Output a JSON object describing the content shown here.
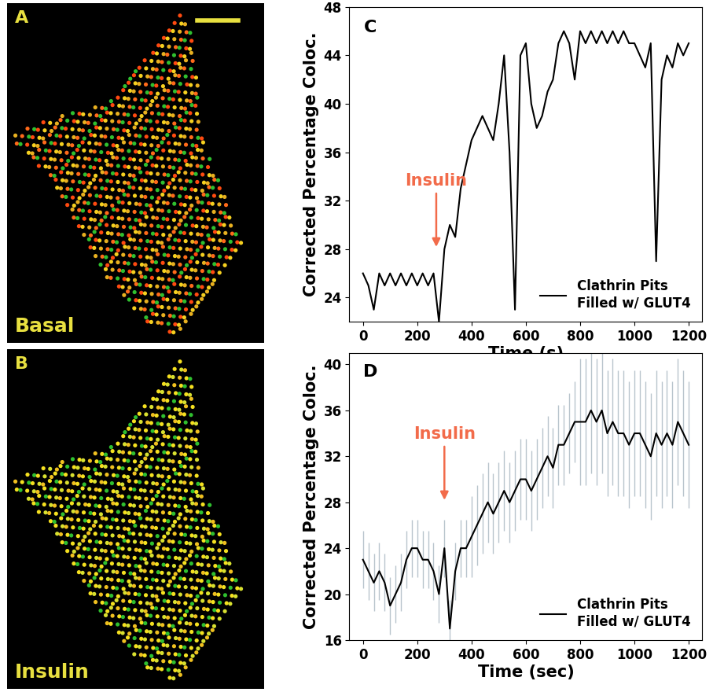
{
  "images": [
    {
      "label": "A",
      "caption": "Basal"
    },
    {
      "label": "B",
      "caption": "Insulin"
    }
  ],
  "chart_data": [
    {
      "type": "line",
      "label": "C",
      "x_label": "Time (s)",
      "y_label": "Corrected Percentage Coloc.",
      "xlim": [
        -50,
        1250
      ],
      "xticks": [
        0,
        200,
        400,
        600,
        800,
        1000,
        1200
      ],
      "ylim": [
        22,
        48
      ],
      "yticks": [
        24,
        28,
        32,
        36,
        40,
        44,
        48
      ],
      "legend": "lower right",
      "annotations": [
        {
          "text": "Insulin",
          "x": 270,
          "y": 28
        }
      ],
      "x": [
        0,
        20,
        40,
        60,
        80,
        100,
        120,
        140,
        160,
        180,
        200,
        220,
        240,
        260,
        280,
        300,
        320,
        340,
        360,
        380,
        400,
        420,
        440,
        460,
        480,
        500,
        520,
        540,
        560,
        580,
        600,
        620,
        640,
        660,
        680,
        700,
        720,
        740,
        760,
        780,
        800,
        820,
        840,
        860,
        880,
        900,
        920,
        940,
        960,
        980,
        1000,
        1020,
        1040,
        1060,
        1080,
        1100,
        1120,
        1140,
        1160,
        1180,
        1200
      ],
      "series": [
        {
          "name": "Clathrin Pits\nFilled w/ GLUT4",
          "color": "#000000",
          "values": [
            26,
            25,
            23,
            26,
            25,
            26,
            25,
            26,
            25,
            26,
            25,
            26,
            25,
            26,
            22,
            28,
            30,
            29,
            33,
            35,
            37,
            38,
            39,
            38,
            37,
            40,
            44,
            36,
            23,
            44,
            45,
            40,
            38,
            39,
            41,
            42,
            45,
            46,
            45,
            42,
            46,
            45,
            46,
            45,
            46,
            45,
            46,
            45,
            46,
            45,
            45,
            44,
            43,
            45,
            27,
            42,
            44,
            43,
            45,
            44,
            45
          ]
        }
      ]
    },
    {
      "type": "line",
      "label": "D",
      "x_label": "Time (sec)",
      "y_label": "Corrected Percentage Coloc.",
      "xlim": [
        -50,
        1250
      ],
      "xticks": [
        0,
        200,
        400,
        600,
        800,
        1000,
        1200
      ],
      "ylim": [
        16,
        41
      ],
      "yticks": [
        16,
        20,
        24,
        28,
        32,
        36,
        40
      ],
      "legend": "lower right",
      "annotations": [
        {
          "text": "Insulin",
          "x": 300,
          "y": 28
        }
      ],
      "x": [
        0,
        20,
        40,
        60,
        80,
        100,
        120,
        140,
        160,
        180,
        200,
        220,
        240,
        260,
        280,
        300,
        320,
        340,
        360,
        380,
        400,
        420,
        440,
        460,
        480,
        500,
        520,
        540,
        560,
        580,
        600,
        620,
        640,
        660,
        680,
        700,
        720,
        740,
        760,
        780,
        800,
        820,
        840,
        860,
        880,
        900,
        920,
        940,
        960,
        980,
        1000,
        1020,
        1040,
        1060,
        1080,
        1100,
        1120,
        1140,
        1160,
        1180,
        1200
      ],
      "series": [
        {
          "name": "Clathrin Pits\nFilled w/ GLUT4",
          "color": "#000000",
          "values": [
            23,
            22,
            21,
            22,
            21,
            19,
            20,
            21,
            23,
            24,
            24,
            23,
            23,
            22,
            20,
            24,
            17,
            22,
            24,
            24,
            25,
            26,
            27,
            28,
            27,
            28,
            29,
            28,
            29,
            30,
            30,
            29,
            30,
            31,
            32,
            31,
            33,
            33,
            34,
            35,
            35,
            35,
            36,
            35,
            36,
            34,
            35,
            34,
            34,
            33,
            34,
            34,
            33,
            32,
            34,
            33,
            34,
            33,
            35,
            34,
            33
          ],
          "errors": [
            2.5,
            2.5,
            2.5,
            2.5,
            2.5,
            2.5,
            2.5,
            2.5,
            2.5,
            2.5,
            2.5,
            2.5,
            2.5,
            2.5,
            2.5,
            2.5,
            2.5,
            2.5,
            2.5,
            2.5,
            3.5,
            3.5,
            3.5,
            3.5,
            3.5,
            3.5,
            3.5,
            3.5,
            3.5,
            3.5,
            3.5,
            3.5,
            3.5,
            3.5,
            3.5,
            3.5,
            3.5,
            3.5,
            3.5,
            3.5,
            5.5,
            5.5,
            5.5,
            5.5,
            5.5,
            5.5,
            5.5,
            5.5,
            5.5,
            5.5,
            5.5,
            5.5,
            5.5,
            5.5,
            5.5,
            5.5,
            5.5,
            5.5,
            5.5,
            5.5,
            5.5
          ]
        }
      ]
    }
  ]
}
